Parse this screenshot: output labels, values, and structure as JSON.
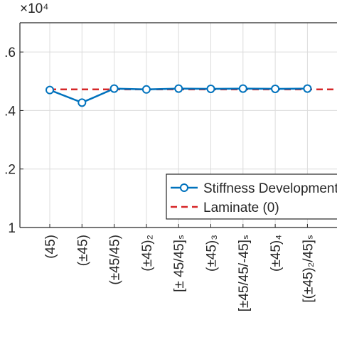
{
  "chart_data": {
    "type": "line",
    "y_exponent": "×10⁴",
    "categories": [
      "(45)",
      "(±45)",
      "(±45/45)",
      "(±45)₂",
      "[± 45/45]ₛ",
      "(±45)₃",
      "[±45/45/-45]ₛ",
      "(±45)₄",
      "[(±45)₂/45]ₛ"
    ],
    "series": [
      {
        "name": "Stiffness Development",
        "color": "#0072bd",
        "values": [
          1.47,
          1.427,
          1.475,
          1.472,
          1.475,
          1.474,
          1.475,
          1.474,
          1.475
        ]
      }
    ],
    "reference": {
      "name": "Laminate (0)",
      "color": "#d62728",
      "value": 1.472
    },
    "ylim": [
      1,
      1.7
    ],
    "yticks": [
      1,
      {
        "value": 1.2,
        "label": ".2"
      },
      {
        "value": 1.4,
        "label": ".4"
      },
      {
        "value": 1.6,
        "label": ".6"
      }
    ],
    "grid": true,
    "legend": "lower right"
  }
}
